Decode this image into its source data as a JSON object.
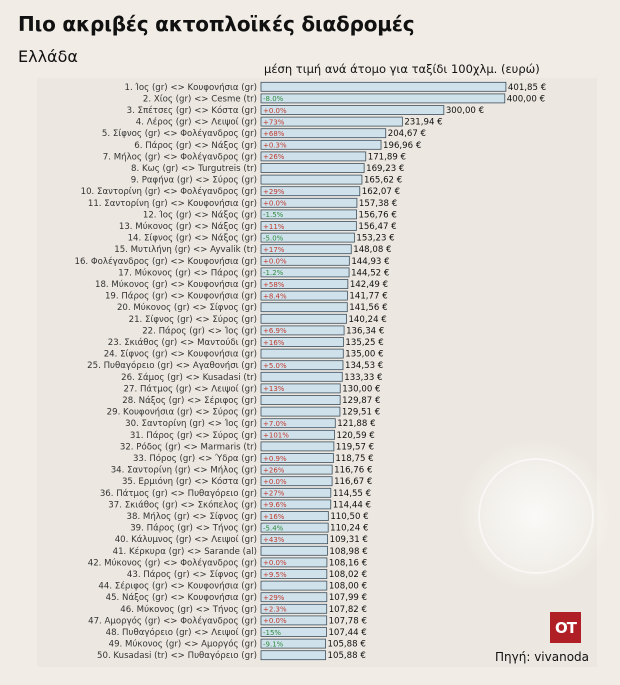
{
  "header": {
    "title": "Πιο ακριβές ακτοπλοϊκές διαδρομές",
    "subtitle": "Ελλάδα",
    "units": "μέση τιμή ανά άτομο για ταξίδι 100χλμ. (ευρώ)"
  },
  "footer": {
    "logo": "OT",
    "source": "Πηγή: vivanoda"
  },
  "colors": {
    "background": "#f1ede6",
    "bar_fill": "#cfe2ec",
    "bar_stroke": "#3d4f5c",
    "increase": "#c0392b",
    "decrease": "#2e8b3a",
    "logo": "#b01f25"
  },
  "chart_data": {
    "type": "bar",
    "orientation": "horizontal",
    "value_suffix": " €",
    "xlim": [
      0,
      402
    ],
    "grid": false,
    "categories": [
      "1. Ίος (gr) <> Κουφονήσια (gr)",
      "2. Χίος (gr) <> Cesme (tr)",
      "3. Σπέτσες (gr) <> Κόστα (gr)",
      "4. Λέρος (gr) <> Λειψοί (gr)",
      "5. Σίφνος (gr) <> Φολέγανδρος (gr)",
      "6. Πάρος (gr) <> Νάξος (gr)",
      "7. Μήλος (gr) <> Φολέγανδρος (gr)",
      "8. Κως (gr) <> Turgutreis (tr)",
      "9. Ραφήνα (gr) <> Σύρος (gr)",
      "10. Σαντορίνη (gr) <> Φολέγανδρος (gr)",
      "11. Σαντορίνη (gr) <> Κουφονήσια (gr)",
      "12. Ίος (gr) <> Νάξος (gr)",
      "13. Μύκονος (gr) <> Νάξος (gr)",
      "14. Σίφνος (gr) <> Νάξος (gr)",
      "15. Μυτιλήνη (gr) <> Ayvalik (tr)",
      "16. Φολέγανδρος (gr) <> Κουφονήσια (gr)",
      "17. Μύκονος (gr) <> Πάρος (gr)",
      "18. Μύκονος (gr) <> Κουφονήσια (gr)",
      "19. Πάρος (gr) <> Κουφονήσια (gr)",
      "20. Μύκονος (gr) <> Σίφνος (gr)",
      "21. Σίφνος (gr) <> Σύρος (gr)",
      "22. Πάρος (gr) <> Ίος (gr)",
      "23. Σκιάθος (gr) <> Μαντούδι (gr)",
      "24. Σίφνος (gr) <> Κουφονήσια (gr)",
      "25. Πυθαγόρειο (gr) <> Αγαθονήσι (gr)",
      "26. Σάμος (gr) <> Kusadasi (tr)",
      "27. Πάτμος (gr) <> Λειψοί (gr)",
      "28. Νάξος (gr) <> Σέριφος (gr)",
      "29. Κουφονήσια (gr) <> Σύρος (gr)",
      "30. Σαντορίνη (gr) <> Ίος (gr)",
      "31. Πάρος (gr) <> Σύρος (gr)",
      "32. Ρόδος (gr) <> Marmaris (tr)",
      "33. Πόρος (gr) <> Ύδρα (gr)",
      "34. Σαντορίνη (gr) <> Μήλος (gr)",
      "35. Ερμιόνη (gr) <> Κόστα (gr)",
      "36. Πάτμος (gr) <> Πυθαγόρειο (gr)",
      "37. Σκιάθος (gr) <> Σκόπελος (gr)",
      "38. Μήλος (gr) <> Σίφνος (gr)",
      "39. Πάρος (gr) <> Τήνος (gr)",
      "40. Κάλυμνος (gr) <> Λειψοί (gr)",
      "41. Κέρκυρα (gr) <> Sarande (al)",
      "42. Μύκονος (gr) <> Φολέγανδρος (gr)",
      "43. Πάρος (gr) <> Σίφνος (gr)",
      "44. Σέριφος (gr) <> Κουφονήσια (gr)",
      "45. Νάξος (gr) <> Κουφονήσια (gr)",
      "46. Μύκονος (gr) <> Τήνος (gr)",
      "47. Αμοργός (gr) <> Φολέγανδρος (gr)",
      "48. Πυθαγόρειο (gr) <> Λειψοί (gr)",
      "49. Μύκονος (gr) <> Αμοργός (gr)",
      "50. Kusadasi (tr) <> Πυθαγόρειο (gr)"
    ],
    "values": [
      401.85,
      400.0,
      300.0,
      231.94,
      204.67,
      196.96,
      171.89,
      169.23,
      165.62,
      162.07,
      157.38,
      156.76,
      156.47,
      153.23,
      148.08,
      144.93,
      144.52,
      142.49,
      141.77,
      141.56,
      140.24,
      136.34,
      135.25,
      135.0,
      134.53,
      133.33,
      130.0,
      129.87,
      129.51,
      121.88,
      120.59,
      119.57,
      118.75,
      116.76,
      116.67,
      114.55,
      114.44,
      110.5,
      110.24,
      109.31,
      108.98,
      108.16,
      108.02,
      108.0,
      107.99,
      107.82,
      107.78,
      107.44,
      105.88,
      105.88
    ],
    "value_labels": [
      "401,85 €",
      "400,00 €",
      "300,00 €",
      "231,94 €",
      "204,67 €",
      "196,96 €",
      "171,89 €",
      "169,23 €",
      "165,62 €",
      "162,07 €",
      "157,38 €",
      "156,76 €",
      "156,47 €",
      "153,23 €",
      "148,08 €",
      "144,93 €",
      "144,52 €",
      "142,49 €",
      "141,77 €",
      "141,56 €",
      "140,24 €",
      "136,34 €",
      "135,25 €",
      "135,00 €",
      "134,53 €",
      "133,33 €",
      "130,00 €",
      "129,87 €",
      "129,51 €",
      "121,88 €",
      "120,59 €",
      "119,57 €",
      "118,75 €",
      "116,76 €",
      "116,67 €",
      "114,55 €",
      "114,44 €",
      "110,50 €",
      "110,24 €",
      "109,31 €",
      "108,98 €",
      "108,16 €",
      "108,02 €",
      "108,00 €",
      "107,99 €",
      "107,82 €",
      "107,78 €",
      "107,44 €",
      "105,88 €",
      "105,88 €"
    ],
    "changes": [
      "",
      "-8.0%",
      "+0.0%",
      "+73%",
      "+68%",
      "+0.3%",
      "+26%",
      "",
      "",
      "+29%",
      "+0.0%",
      "-1.5%",
      "+11%",
      "-5.0%",
      "+17%",
      "+0.0%",
      "-1.2%",
      "+58%",
      "+8.4%",
      "",
      "",
      "+6.9%",
      "+16%",
      "",
      "+5.0%",
      "",
      "+13%",
      "",
      "",
      "+7.0%",
      "+101%",
      "",
      "+0.9%",
      "+26%",
      "+0.0%",
      "+27%",
      "+9.6%",
      "+16%",
      "-5.4%",
      "+43%",
      "",
      "+0.0%",
      "+9.5%",
      "",
      "+29%",
      "+2.3%",
      "+0.0%",
      "-15%",
      "-9.1%",
      ""
    ]
  }
}
